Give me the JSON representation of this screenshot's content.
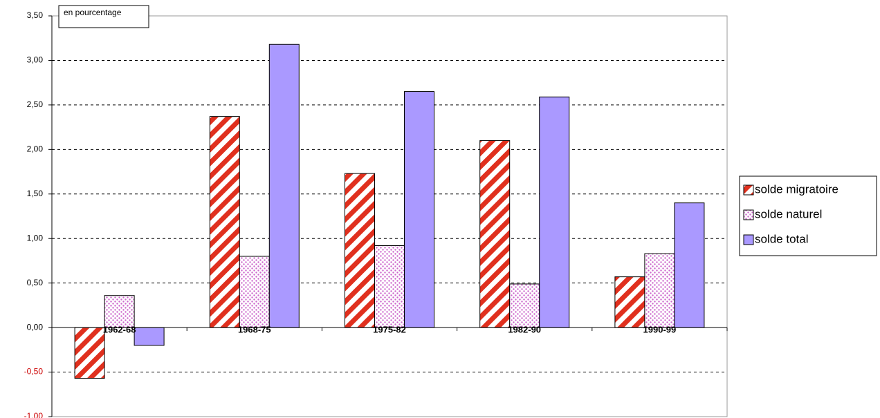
{
  "chart_data": {
    "type": "bar",
    "annotation": "en pourcentage",
    "categories": [
      "1962-68",
      "1968-75",
      "1975-82",
      "1982-90",
      "1990-99"
    ],
    "series": [
      {
        "name": "solde  migratoire",
        "color": "#e0301e",
        "pattern": "diagonal",
        "values": [
          -0.57,
          2.37,
          1.73,
          2.1,
          0.57
        ]
      },
      {
        "name": "solde  naturel",
        "color": "#cc66cc",
        "pattern": "dots",
        "values": [
          0.36,
          0.8,
          0.92,
          0.49,
          0.83
        ]
      },
      {
        "name": "solde  total",
        "color": "#aa99ff",
        "pattern": "solid",
        "values": [
          -0.2,
          3.18,
          2.65,
          2.59,
          1.4
        ]
      }
    ],
    "ylim": [
      -1.0,
      3.5
    ],
    "yticks": [
      {
        "value": -1.0,
        "label": "-1,00"
      },
      {
        "value": -0.5,
        "label": "-0,50"
      },
      {
        "value": 0,
        "label": "0,00"
      },
      {
        "value": 0.5,
        "label": "0,50"
      },
      {
        "value": 1.0,
        "label": "1,00"
      },
      {
        "value": 1.5,
        "label": "1,50"
      },
      {
        "value": 2.0,
        "label": "2,00"
      },
      {
        "value": 2.5,
        "label": "2,50"
      },
      {
        "value": 3.0,
        "label": "3,00"
      },
      {
        "value": 3.5,
        "label": "3,50"
      }
    ],
    "grid": true,
    "legend": "right"
  }
}
